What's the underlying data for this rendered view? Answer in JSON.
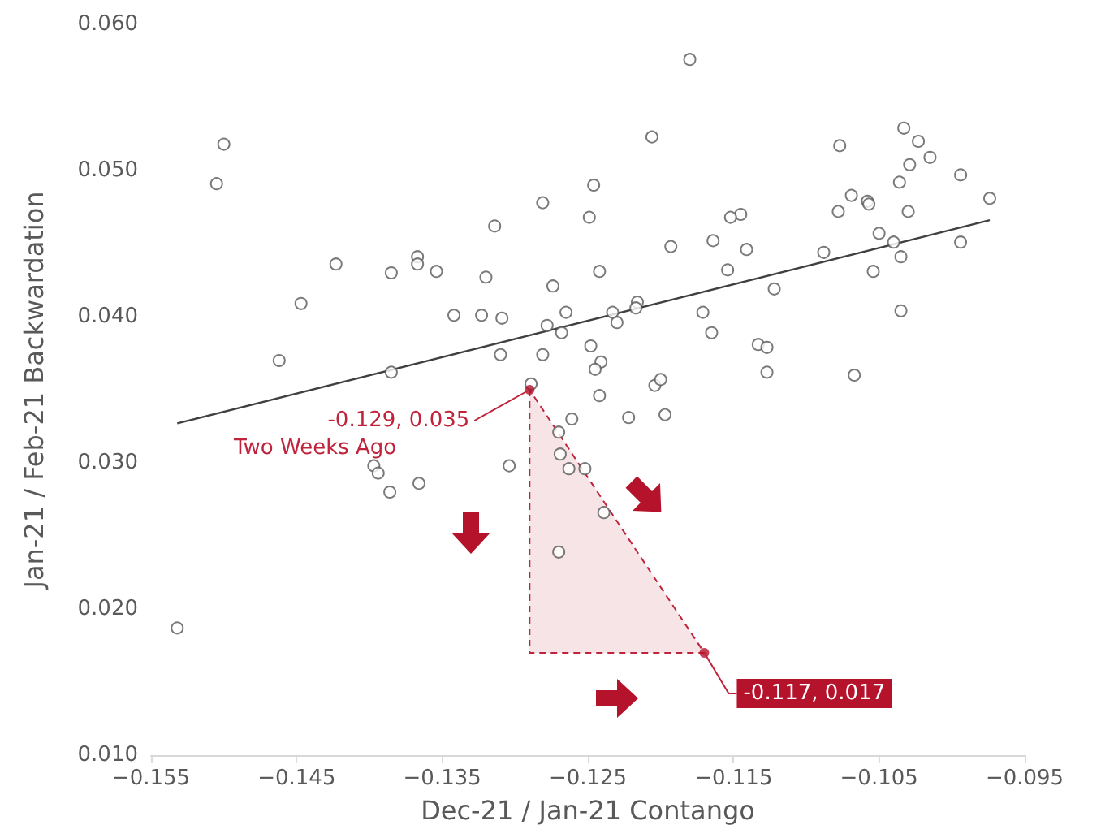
{
  "chart_data": {
    "type": "scatter",
    "xlabel": "Dec-21 / Jan-21 Contango",
    "ylabel": "Jan-21 / Feb-21 Backwardation",
    "xlim": [
      -0.155,
      -0.095
    ],
    "xticks": [
      {
        "value": -0.155,
        "label": "−0.155"
      },
      {
        "value": -0.145,
        "label": "−0.145"
      },
      {
        "value": -0.135,
        "label": "−0.135"
      },
      {
        "value": -0.125,
        "label": "−0.125"
      },
      {
        "value": -0.115,
        "label": "−0.115"
      },
      {
        "value": -0.105,
        "label": "−0.105"
      },
      {
        "value": -0.095,
        "label": "−0.095"
      }
    ],
    "ylim": [
      0.01,
      0.06
    ],
    "yticks": [
      {
        "value": 0.01,
        "label": "0.010"
      },
      {
        "value": 0.02,
        "label": "0.020"
      },
      {
        "value": 0.03,
        "label": "0.030"
      },
      {
        "value": 0.04,
        "label": "0.040"
      },
      {
        "value": 0.05,
        "label": "0.050"
      },
      {
        "value": 0.06,
        "label": "0.060"
      }
    ],
    "grid": false,
    "marker": "circle",
    "series": [
      {
        "color": "#595959",
        "x": [
          -0.15,
          -0.1505,
          -0.1246,
          -0.1281,
          -0.1314,
          -0.1249,
          -0.1423,
          -0.1367,
          -0.1367,
          -0.1385,
          -0.1354,
          -0.132,
          -0.1242,
          -0.1274,
          -0.1447,
          -0.1342,
          -0.1323,
          -0.1309,
          -0.1265,
          -0.1233,
          -0.123,
          -0.1278,
          -0.1268,
          -0.1248,
          -0.131,
          -0.1281,
          -0.1462,
          -0.1385,
          -0.1241,
          -0.1245,
          -0.1289,
          -0.118,
          -0.1206,
          -0.1033,
          -0.1023,
          -0.1015,
          -0.1029,
          -0.1077,
          -0.0994,
          -0.1036,
          -0.1069,
          -0.1058,
          -0.1057,
          -0.0974,
          -0.1145,
          -0.1078,
          -0.103,
          -0.1152,
          -0.105,
          -0.1164,
          -0.1193,
          -0.1141,
          -0.1088,
          -0.104,
          -0.0994,
          -0.1035,
          -0.1154,
          -0.1054,
          -0.1122,
          -0.1216,
          -0.1217,
          -0.1171,
          -0.1165,
          -0.1035,
          -0.1133,
          -0.1127,
          -0.1127,
          -0.1204,
          -0.12,
          -0.1067,
          -0.1242,
          -0.1261,
          -0.127,
          -0.1397,
          -0.1394,
          -0.1386,
          -0.1366,
          -0.1304,
          -0.1269,
          -0.1263,
          -0.1252,
          -0.1239,
          -0.127,
          -0.1532,
          -0.1222,
          -0.1197
        ],
        "values": [
          0.0518,
          0.0491,
          0.049,
          0.0478,
          0.0462,
          0.0468,
          0.0436,
          0.0441,
          0.0436,
          0.043,
          0.0431,
          0.0427,
          0.0431,
          0.0421,
          0.0409,
          0.0401,
          0.0401,
          0.0399,
          0.0403,
          0.0403,
          0.0396,
          0.0394,
          0.0389,
          0.038,
          0.0374,
          0.0374,
          0.037,
          0.0362,
          0.0369,
          0.0364,
          0.0354,
          0.0576,
          0.0523,
          0.0529,
          0.052,
          0.0509,
          0.0504,
          0.0517,
          0.0497,
          0.0492,
          0.0483,
          0.0479,
          0.0477,
          0.0481,
          0.047,
          0.0472,
          0.0472,
          0.0468,
          0.0457,
          0.0452,
          0.0448,
          0.0446,
          0.0444,
          0.0451,
          0.0451,
          0.0441,
          0.0432,
          0.0431,
          0.0419,
          0.041,
          0.0406,
          0.0403,
          0.0389,
          0.0404,
          0.0381,
          0.0379,
          0.0362,
          0.0353,
          0.0357,
          0.036,
          0.0346,
          0.033,
          0.0321,
          0.0298,
          0.0293,
          0.028,
          0.0286,
          0.0298,
          0.0306,
          0.0296,
          0.0296,
          0.0266,
          0.0239,
          0.0187,
          0.0331,
          0.0333
        ]
      },
      {
        "type": "line",
        "marker": "none",
        "color": "#404040",
        "x": [
          -0.1532,
          -0.0974
        ],
        "values": [
          0.0327,
          0.0466
        ]
      },
      {
        "type": "area",
        "marker": "none",
        "color": "#c0243c",
        "line_style": "dashed",
        "x": [
          -0.129,
          -0.129,
          -0.117
        ],
        "values": [
          0.035,
          0.017,
          0.017
        ]
      },
      {
        "type": "scatter",
        "color": "#b5122b",
        "x": [
          -0.129,
          -0.117
        ],
        "values": [
          0.035,
          0.017
        ]
      }
    ],
    "annotations": [
      {
        "text": "-0.129, 0.035",
        "x": -0.129,
        "y": 0.035
      },
      "Two Weeks Ago",
      {
        "text": "-0.117, 0.017",
        "x": -0.117,
        "y": 0.017
      }
    ]
  }
}
